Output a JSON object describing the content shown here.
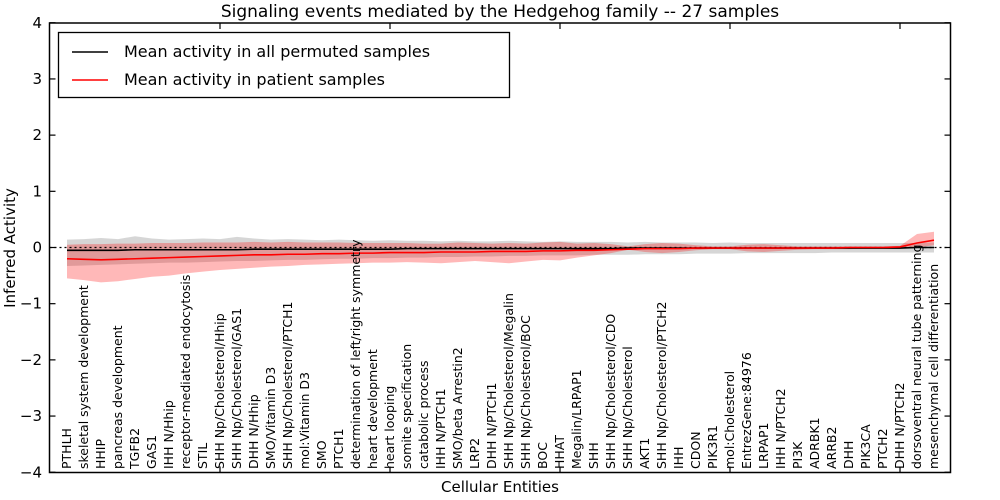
{
  "chart_data": {
    "type": "line",
    "title": "Signaling events mediated by the Hedgehog family -- 27 samples",
    "xlabel": "Cellular Entities",
    "ylabel": "Inferred Activity",
    "ylim": [
      -4,
      4
    ],
    "yticks": [
      -4,
      -3,
      -2,
      -1,
      0,
      1,
      2,
      3,
      4
    ],
    "ytick_labels": [
      "−4",
      "−3",
      "−2",
      "−1",
      "0",
      "1",
      "2",
      "3",
      "4"
    ],
    "xticks": [
      10,
      20,
      30,
      40,
      50
    ],
    "grid": false,
    "legend_position": "upper left",
    "zero_line": {
      "value": 0,
      "style": "dotted",
      "color": "#000000"
    },
    "categories": [
      "PTHLH",
      "skeletal system development",
      "HHIP",
      "pancreas development",
      "TGFB2",
      "GAS1",
      "IHH N/Hhip",
      "receptor-mediated endocytosis",
      "STIL",
      "SHH Np/Cholesterol/Hhip",
      "SHH Np/Cholesterol/GAS1",
      "DHH N/Hhip",
      "SMO/Vitamin D3",
      "SHH Np/Cholesterol/PTCH1",
      "mol:Vitamin D3",
      "SMO",
      "PTCH1",
      "determination of left/right symmetry",
      "heart development",
      "heart looping",
      "somite specification",
      "catabolic process",
      "IHH N/PTCH1",
      "SMO/beta Arrestin2",
      "LRP2",
      "DHH N/PTCH1",
      "SHH Np/Cholesterol/Megalin",
      "SHH Np/Cholesterol/BOC",
      "BOC",
      "HHAT",
      "Megalin/LRPAP1",
      "SHH",
      "SHH Np/Cholesterol/CDO",
      "SHH Np/Cholesterol",
      "AKT1",
      "SHH Np/Cholesterol/PTCH2",
      "IHH",
      "CDON",
      "PIK3R1",
      "mol:Cholesterol",
      "EntrezGene:84976",
      "LRPAP1",
      "IHH N/PTCH2",
      "PI3K",
      "ADRBK1",
      "ARRB2",
      "DHH",
      "PIK3CA",
      "PTCH2",
      "DHH N/PTCH2",
      "dorsoventral neural tube patterning",
      "mesenchymal cell differentiation"
    ],
    "series": [
      {
        "name": "Mean activity in all permuted samples",
        "color": "#000000",
        "band_color": "rgba(120,120,120,0.30)",
        "values": [
          -0.05,
          -0.05,
          -0.05,
          -0.05,
          -0.04,
          -0.04,
          -0.04,
          -0.04,
          -0.04,
          -0.04,
          -0.04,
          -0.03,
          -0.03,
          -0.03,
          -0.03,
          -0.03,
          -0.03,
          -0.03,
          -0.03,
          -0.03,
          -0.02,
          -0.02,
          -0.02,
          -0.02,
          -0.02,
          -0.02,
          -0.02,
          -0.02,
          -0.02,
          -0.02,
          -0.02,
          -0.02,
          -0.02,
          -0.01,
          -0.01,
          -0.01,
          -0.01,
          -0.01,
          -0.01,
          -0.01,
          -0.01,
          -0.01,
          -0.01,
          -0.01,
          -0.01,
          -0.01,
          -0.01,
          -0.01,
          -0.01,
          -0.01,
          0.0,
          0.0
        ],
        "band_upper": [
          0.14,
          0.15,
          0.17,
          0.15,
          0.2,
          0.16,
          0.14,
          0.15,
          0.16,
          0.15,
          0.19,
          0.16,
          0.14,
          0.15,
          0.14,
          0.13,
          0.14,
          0.13,
          0.12,
          0.13,
          0.12,
          0.12,
          0.11,
          0.12,
          0.11,
          0.11,
          0.12,
          0.11,
          0.1,
          0.11,
          0.1,
          0.1,
          0.1,
          0.09,
          0.1,
          0.09,
          0.09,
          0.09,
          0.08,
          0.09,
          0.08,
          0.08,
          0.08,
          0.08,
          0.08,
          0.08,
          0.08,
          0.08,
          0.08,
          0.08,
          0.08,
          0.09
        ],
        "band_lower": [
          -0.33,
          -0.32,
          -0.31,
          -0.3,
          -0.29,
          -0.28,
          -0.27,
          -0.27,
          -0.26,
          -0.25,
          -0.24,
          -0.24,
          -0.23,
          -0.22,
          -0.22,
          -0.21,
          -0.2,
          -0.2,
          -0.19,
          -0.19,
          -0.18,
          -0.18,
          -0.17,
          -0.17,
          -0.16,
          -0.16,
          -0.15,
          -0.15,
          -0.14,
          -0.14,
          -0.14,
          -0.13,
          -0.13,
          -0.13,
          -0.12,
          -0.12,
          -0.12,
          -0.11,
          -0.11,
          -0.11,
          -0.1,
          -0.1,
          -0.1,
          -0.1,
          -0.1,
          -0.09,
          -0.09,
          -0.09,
          -0.09,
          -0.09,
          -0.09,
          -0.09
        ]
      },
      {
        "name": "Mean activity in patient samples",
        "color": "#ff0000",
        "band_color": "rgba(255,0,0,0.28)",
        "values": [
          -0.2,
          -0.21,
          -0.22,
          -0.21,
          -0.2,
          -0.19,
          -0.18,
          -0.17,
          -0.16,
          -0.15,
          -0.14,
          -0.13,
          -0.13,
          -0.12,
          -0.12,
          -0.11,
          -0.11,
          -0.1,
          -0.1,
          -0.09,
          -0.09,
          -0.09,
          -0.08,
          -0.08,
          -0.08,
          -0.07,
          -0.07,
          -0.07,
          -0.06,
          -0.06,
          -0.05,
          -0.05,
          -0.04,
          -0.03,
          -0.02,
          -0.02,
          -0.02,
          -0.01,
          -0.01,
          -0.01,
          -0.01,
          -0.01,
          -0.01,
          -0.01,
          -0.01,
          -0.01,
          0.0,
          0.0,
          0.0,
          0.01,
          0.08,
          0.13
        ],
        "band_upper": [
          0.05,
          0.06,
          0.06,
          0.07,
          0.07,
          0.08,
          0.08,
          0.08,
          0.09,
          0.09,
          0.09,
          0.1,
          0.09,
          0.1,
          0.09,
          0.09,
          0.09,
          0.08,
          0.08,
          0.08,
          0.08,
          0.07,
          0.07,
          0.09,
          0.08,
          0.07,
          0.08,
          0.07,
          0.09,
          0.1,
          0.07,
          0.08,
          0.06,
          0.02,
          0.06,
          0.08,
          0.07,
          0.04,
          0.02,
          0.02,
          0.05,
          0.06,
          0.04,
          0.02,
          0.02,
          0.02,
          0.02,
          0.02,
          0.02,
          0.03,
          0.24,
          0.28
        ],
        "band_lower": [
          -0.55,
          -0.58,
          -0.62,
          -0.6,
          -0.56,
          -0.52,
          -0.5,
          -0.46,
          -0.43,
          -0.4,
          -0.38,
          -0.36,
          -0.34,
          -0.33,
          -0.31,
          -0.3,
          -0.29,
          -0.28,
          -0.27,
          -0.27,
          -0.26,
          -0.27,
          -0.28,
          -0.26,
          -0.24,
          -0.26,
          -0.28,
          -0.25,
          -0.22,
          -0.23,
          -0.18,
          -0.14,
          -0.1,
          -0.04,
          -0.08,
          -0.1,
          -0.08,
          -0.05,
          -0.03,
          -0.03,
          -0.07,
          -0.08,
          -0.06,
          -0.04,
          -0.03,
          -0.03,
          -0.03,
          -0.02,
          -0.02,
          -0.02,
          0.0,
          0.04
        ]
      }
    ]
  },
  "legend": {
    "entries": [
      {
        "label": "Mean activity in all permuted samples",
        "color": "#000000"
      },
      {
        "label": "Mean activity in patient samples",
        "color": "#ff0000"
      }
    ]
  }
}
